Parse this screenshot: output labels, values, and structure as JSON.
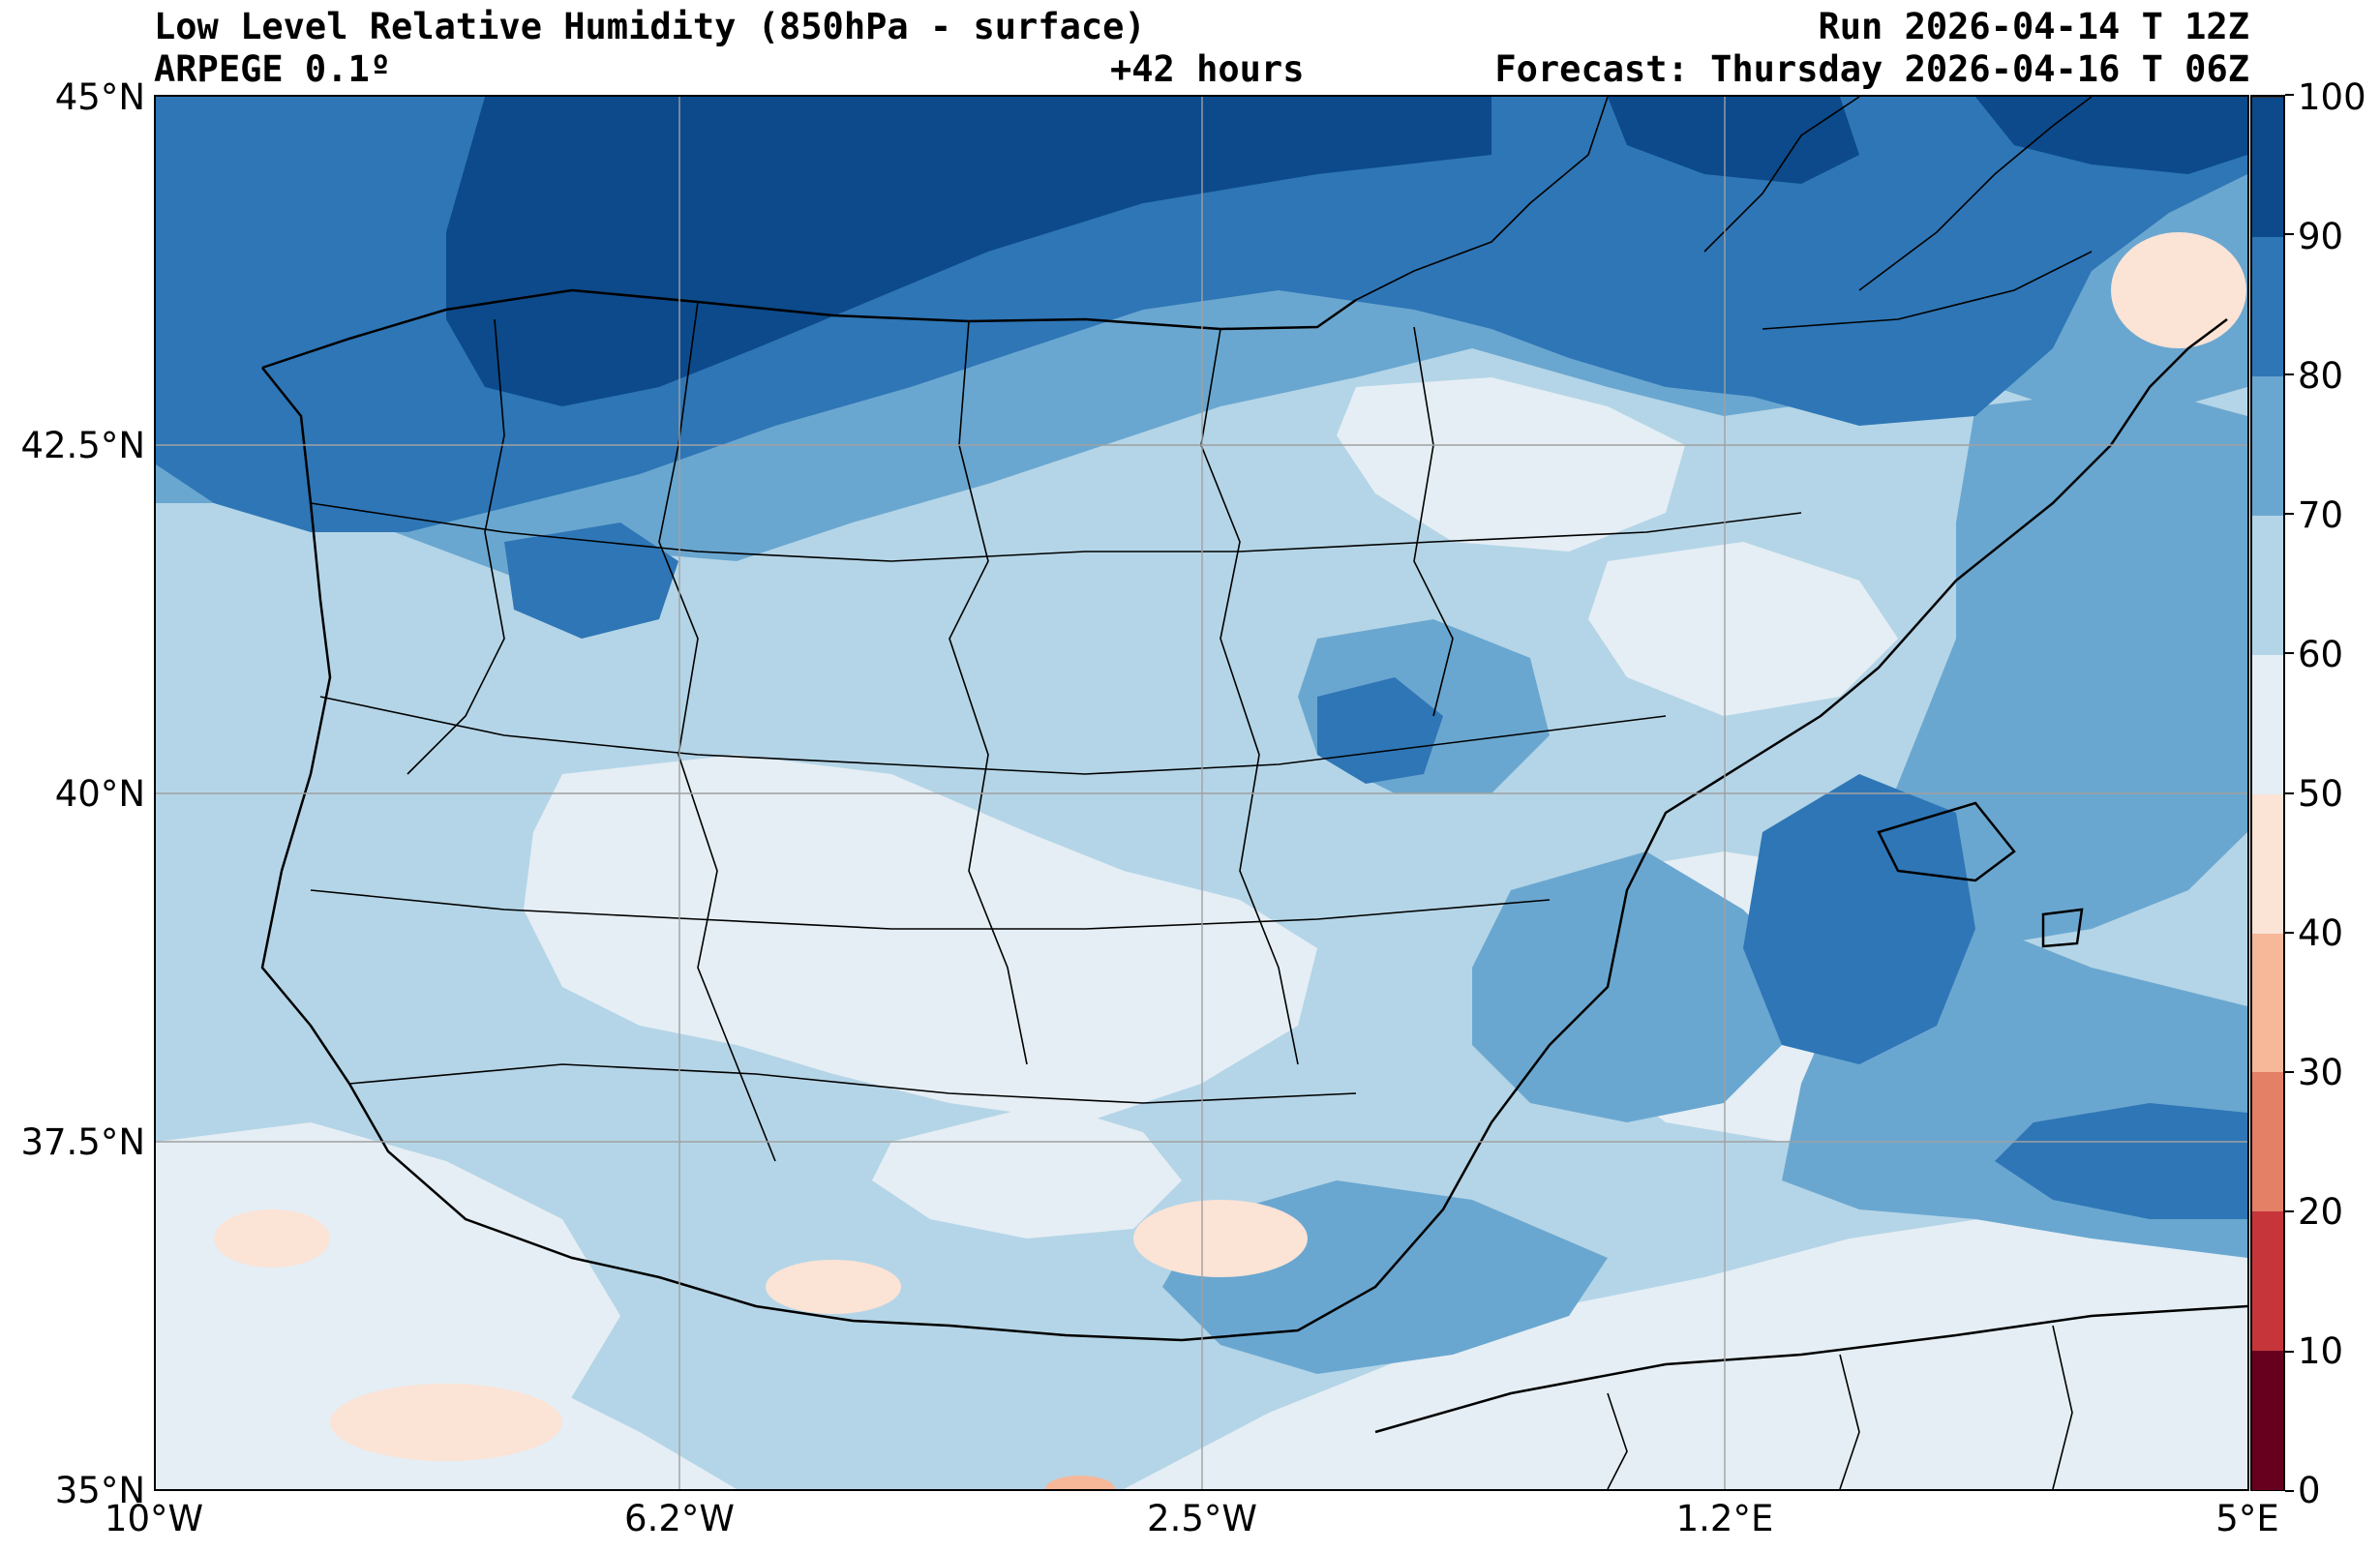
{
  "header": {
    "title": "Low Level Relative Humidity (850hPa - surface)",
    "model": "ARPEGE 0.1º",
    "lead_time": "+42 hours",
    "run": "Run 2026-04-14 T 12Z",
    "forecast": "Forecast: Thursday 2026-04-16 T 06Z"
  },
  "map": {
    "latitude_labels": [
      "45°N",
      "42.5°N",
      "40°N",
      "37.5°N",
      "35°N"
    ],
    "longitude_labels": [
      "10°W",
      "6.2°W",
      "2.5°W",
      "1.2°E",
      "5°E"
    ],
    "extent": {
      "lon_min": -10,
      "lon_max": 5,
      "lat_min": 35,
      "lat_max": 45
    },
    "gridlines": true,
    "units": "%"
  },
  "colorbar": {
    "labels": [
      "0",
      "10",
      "20",
      "30",
      "40",
      "50",
      "60",
      "70",
      "80",
      "90",
      "100"
    ],
    "colors": [
      "#67001f",
      "#c6353a",
      "#e48066",
      "#f7b799",
      "#fbe3d6",
      "#e5eef4",
      "#b4d5e7",
      "#6aa7d0",
      "#2e76b6",
      "#0c4a8b"
    ]
  }
}
